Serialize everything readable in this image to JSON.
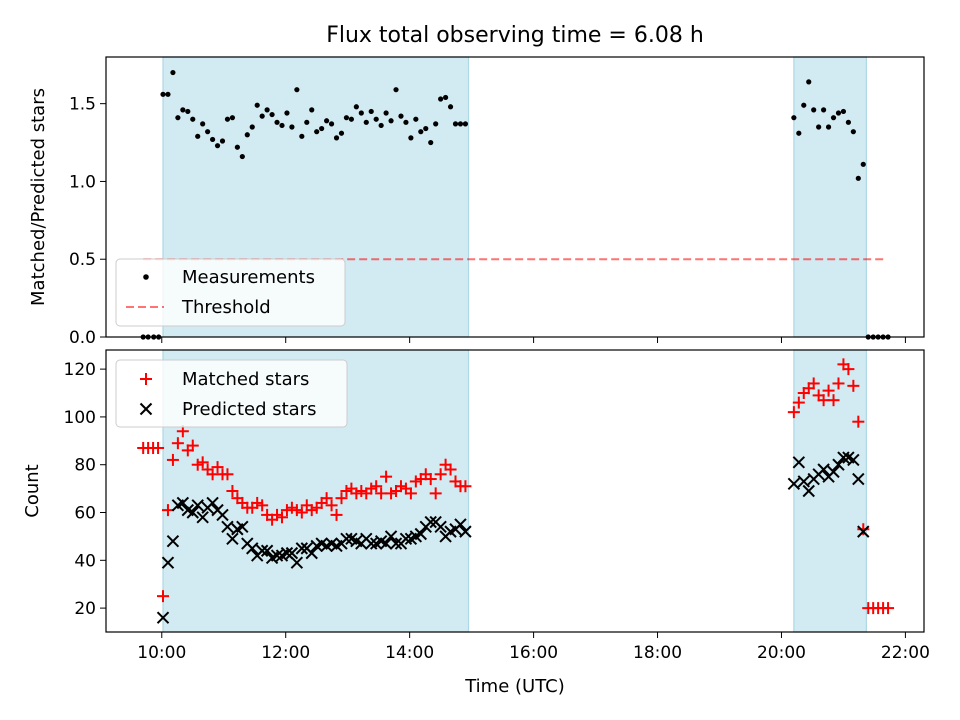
{
  "figure": {
    "title": "Flux total observing time = 6.08 h",
    "xlabel": "Time (UTC)",
    "xticks": [
      "10:00",
      "12:00",
      "14:00",
      "16:00",
      "18:00",
      "20:00",
      "22:00"
    ]
  },
  "colors": {
    "shade": "#add8e6",
    "measurement": "#000000",
    "threshold": "#ff0000",
    "matched": "#ff0000",
    "predicted": "#000000"
  },
  "chart_data": [
    {
      "type": "scatter",
      "ylabel": "Matched/Predicted stars",
      "x_unit": "hours UTC",
      "xlim": [
        9.1,
        22.3
      ],
      "ylim": [
        0,
        1.8
      ],
      "yticks": [
        "0.0",
        "0.5",
        "1.0",
        "1.5"
      ],
      "shaded_intervals": [
        [
          10.02,
          14.95
        ],
        [
          20.2,
          21.37
        ]
      ],
      "legend": {
        "placement": "lower-left",
        "entries": [
          "Measurements",
          "Threshold"
        ]
      },
      "threshold": {
        "name": "Threshold",
        "y": 0.5,
        "x_range": [
          9.7,
          21.65
        ]
      },
      "series": [
        {
          "name": "Measurements",
          "x": [
            9.7,
            9.78,
            9.87,
            9.95,
            10.02,
            10.1,
            10.18,
            10.26,
            10.34,
            10.42,
            10.5,
            10.58,
            10.66,
            10.74,
            10.82,
            10.9,
            10.98,
            11.06,
            11.14,
            11.22,
            11.3,
            11.38,
            11.46,
            11.54,
            11.62,
            11.7,
            11.78,
            11.86,
            11.94,
            12.02,
            12.1,
            12.18,
            12.26,
            12.34,
            12.42,
            12.5,
            12.58,
            12.66,
            12.74,
            12.82,
            12.9,
            12.98,
            13.06,
            13.14,
            13.22,
            13.3,
            13.38,
            13.46,
            13.54,
            13.62,
            13.7,
            13.78,
            13.86,
            13.94,
            14.02,
            14.1,
            14.18,
            14.26,
            14.34,
            14.42,
            14.5,
            14.58,
            14.66,
            14.74,
            14.82,
            14.9,
            20.2,
            20.28,
            20.36,
            20.44,
            20.52,
            20.6,
            20.68,
            20.76,
            20.84,
            20.92,
            21.0,
            21.08,
            21.16,
            21.24,
            21.32,
            21.4,
            21.48,
            21.56,
            21.64,
            21.72
          ],
          "y": [
            0.0,
            0.0,
            0.0,
            0.0,
            1.56,
            1.56,
            1.7,
            1.41,
            1.46,
            1.45,
            1.4,
            1.29,
            1.37,
            1.32,
            1.27,
            1.23,
            1.26,
            1.4,
            1.41,
            1.22,
            1.16,
            1.3,
            1.35,
            1.49,
            1.42,
            1.46,
            1.43,
            1.38,
            1.36,
            1.44,
            1.35,
            1.59,
            1.29,
            1.38,
            1.46,
            1.32,
            1.34,
            1.39,
            1.37,
            1.28,
            1.31,
            1.41,
            1.4,
            1.48,
            1.44,
            1.38,
            1.45,
            1.4,
            1.36,
            1.44,
            1.39,
            1.59,
            1.42,
            1.38,
            1.28,
            1.4,
            1.32,
            1.34,
            1.25,
            1.37,
            1.53,
            1.54,
            1.48,
            1.37,
            1.37,
            1.37,
            1.41,
            1.31,
            1.49,
            1.64,
            1.46,
            1.35,
            1.46,
            1.35,
            1.41,
            1.44,
            1.45,
            1.38,
            1.32,
            1.02,
            1.11,
            0.0,
            0.0,
            0.0,
            0.0,
            0.0
          ]
        }
      ]
    },
    {
      "type": "scatter",
      "ylabel": "Count",
      "x_unit": "hours UTC",
      "xlim": [
        9.1,
        22.3
      ],
      "ylim": [
        10,
        128
      ],
      "yticks": [
        "20",
        "40",
        "60",
        "80",
        "100",
        "120"
      ],
      "shaded_intervals": [
        [
          10.02,
          14.95
        ],
        [
          20.2,
          21.37
        ]
      ],
      "legend": {
        "placement": "top-left",
        "entries": [
          "Matched stars",
          "Predicted stars"
        ]
      },
      "series": [
        {
          "name": "Matched stars",
          "marker": "plus",
          "x": [
            9.7,
            9.78,
            9.86,
            9.94,
            10.02,
            10.1,
            10.18,
            10.26,
            10.34,
            10.42,
            10.5,
            10.58,
            10.66,
            10.74,
            10.82,
            10.9,
            10.98,
            11.06,
            11.14,
            11.22,
            11.3,
            11.38,
            11.46,
            11.54,
            11.62,
            11.7,
            11.78,
            11.86,
            11.94,
            12.02,
            12.1,
            12.18,
            12.26,
            12.34,
            12.42,
            12.5,
            12.58,
            12.66,
            12.74,
            12.82,
            12.9,
            12.98,
            13.06,
            13.14,
            13.22,
            13.3,
            13.38,
            13.46,
            13.54,
            13.62,
            13.7,
            13.78,
            13.86,
            13.94,
            14.02,
            14.1,
            14.18,
            14.26,
            14.34,
            14.42,
            14.5,
            14.58,
            14.66,
            14.74,
            14.82,
            14.9,
            20.2,
            20.28,
            20.36,
            20.44,
            20.52,
            20.6,
            20.68,
            20.76,
            20.84,
            20.92,
            21.0,
            21.08,
            21.16,
            21.24,
            21.32,
            21.4,
            21.48,
            21.56,
            21.64,
            21.72
          ],
          "y": [
            87,
            87,
            87,
            87,
            25,
            61,
            82,
            89,
            94,
            86,
            88,
            80,
            81,
            78,
            76,
            79,
            76,
            76,
            69,
            66,
            64,
            62,
            62,
            64,
            63,
            59,
            57,
            59,
            58,
            61,
            62,
            61,
            60,
            63,
            61,
            62,
            64,
            66,
            63,
            59,
            66,
            69,
            70,
            68,
            69,
            68,
            70,
            71,
            68,
            75,
            68,
            69,
            71,
            70,
            68,
            73,
            74,
            76,
            74,
            68,
            76,
            80,
            78,
            73,
            71,
            71,
            102,
            106,
            110,
            112,
            114,
            109,
            107,
            111,
            107,
            114,
            122,
            120,
            113,
            98,
            53,
            20,
            20,
            20,
            20,
            20
          ]
        },
        {
          "name": "Predicted stars",
          "marker": "x",
          "x": [
            10.02,
            10.1,
            10.18,
            10.26,
            10.34,
            10.42,
            10.5,
            10.58,
            10.66,
            10.74,
            10.82,
            10.9,
            10.98,
            11.06,
            11.14,
            11.22,
            11.3,
            11.38,
            11.46,
            11.54,
            11.62,
            11.7,
            11.78,
            11.86,
            11.94,
            12.02,
            12.1,
            12.18,
            12.26,
            12.34,
            12.42,
            12.5,
            12.58,
            12.66,
            12.74,
            12.82,
            12.9,
            12.98,
            13.06,
            13.14,
            13.22,
            13.3,
            13.38,
            13.46,
            13.54,
            13.62,
            13.7,
            13.78,
            13.86,
            13.94,
            14.02,
            14.1,
            14.18,
            14.26,
            14.34,
            14.42,
            14.5,
            14.58,
            14.66,
            14.74,
            14.82,
            14.9,
            20.2,
            20.28,
            20.36,
            20.44,
            20.52,
            20.6,
            20.68,
            20.76,
            20.84,
            20.92,
            21.0,
            21.08,
            21.16,
            21.24,
            21.32
          ],
          "y": [
            16,
            39,
            48,
            63,
            64,
            61,
            60,
            63,
            58,
            62,
            64,
            61,
            59,
            54,
            49,
            53,
            54,
            47,
            45,
            42,
            44,
            44,
            41,
            42,
            42,
            43,
            43,
            39,
            45,
            45,
            43,
            46,
            47,
            46,
            47,
            46,
            47,
            49,
            49,
            48,
            47,
            49,
            47,
            47,
            48,
            47,
            50,
            47,
            47,
            49,
            49,
            50,
            51,
            54,
            56,
            56,
            54,
            50,
            52,
            53,
            55,
            52,
            72,
            81,
            73,
            69,
            74,
            76,
            78,
            75,
            77,
            80,
            83,
            83,
            82,
            74,
            52
          ]
        }
      ]
    }
  ]
}
